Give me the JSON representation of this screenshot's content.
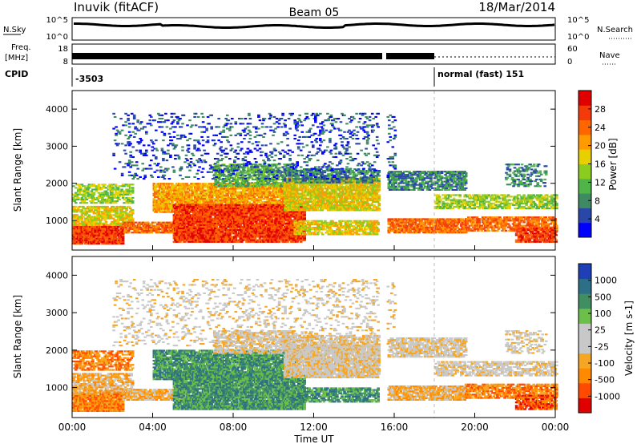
{
  "header": {
    "station": "Inuvik (fitACF)",
    "beam": "Beam 05",
    "date": "18/Mar/2014"
  },
  "top_panels": {
    "nsky_label": "N.Sky",
    "nsky_ticks": [
      "10^5",
      "10^0"
    ],
    "nsearch_label": "N.Search",
    "nsearch_ticks": [
      "10^5",
      "10^0"
    ],
    "freq_label": "Freq.",
    "freq_unit": "[MHz]",
    "freq_ticks": [
      "18",
      "8"
    ],
    "nave_label": "Nave",
    "nave_ticks": [
      "60",
      "0"
    ],
    "cpid_label": "CPID",
    "cpid_value": "-3503",
    "mode_text": "normal (fast) 151"
  },
  "colors": {
    "power": [
      "#0000ff",
      "#2847a8",
      "#3e8a62",
      "#4fb548",
      "#8ccc1e",
      "#e8cf00",
      "#ff9a00",
      "#ff6600",
      "#f53a0a",
      "#e10000"
    ],
    "velocity": [
      "#e00000",
      "#ff4a00",
      "#ff8a00",
      "#f5a623",
      "#c8c8c8",
      "#c8c8c8",
      "#6cc04a",
      "#3f8f63",
      "#2d6f86",
      "#1f3fb4"
    ]
  },
  "chart_data": [
    {
      "type": "heatmap",
      "name": "power",
      "ylabel": "Slant Range [km]",
      "xlabel": "Time UT",
      "xlim": [
        0,
        24
      ],
      "ylim": [
        200,
        4500
      ],
      "yticks": [
        "4000",
        "3000",
        "2000",
        "1000"
      ],
      "xticks": [
        "00:00",
        "04:00",
        "08:00",
        "12:00",
        "16:00",
        "20:00",
        "00:00"
      ],
      "colorbar_label": "Power [dB]",
      "colorbar_ticks": [
        "28",
        "24",
        "20",
        "16",
        "12",
        "8",
        "4"
      ],
      "data_gaps_hours": [
        [
          15.2,
          15.6
        ]
      ],
      "mode_change_hour": 18.0
    },
    {
      "type": "heatmap",
      "name": "velocity",
      "ylabel": "Slant Range [km]",
      "xlabel": "Time UT",
      "xlim": [
        0,
        24
      ],
      "ylim": [
        200,
        4500
      ],
      "yticks": [
        "4000",
        "3000",
        "2000",
        "1000"
      ],
      "xticks": [
        "00:00",
        "04:00",
        "08:00",
        "12:00",
        "16:00",
        "20:00",
        "00:00"
      ],
      "colorbar_label": "Velocity [m s-1]",
      "colorbar_ticks": [
        "1000",
        "500",
        "100",
        "25",
        "-25",
        "-100",
        "-500",
        "-1000"
      ],
      "data_gaps_hours": [
        [
          15.2,
          15.6
        ]
      ],
      "mode_change_hour": 18.0
    }
  ]
}
